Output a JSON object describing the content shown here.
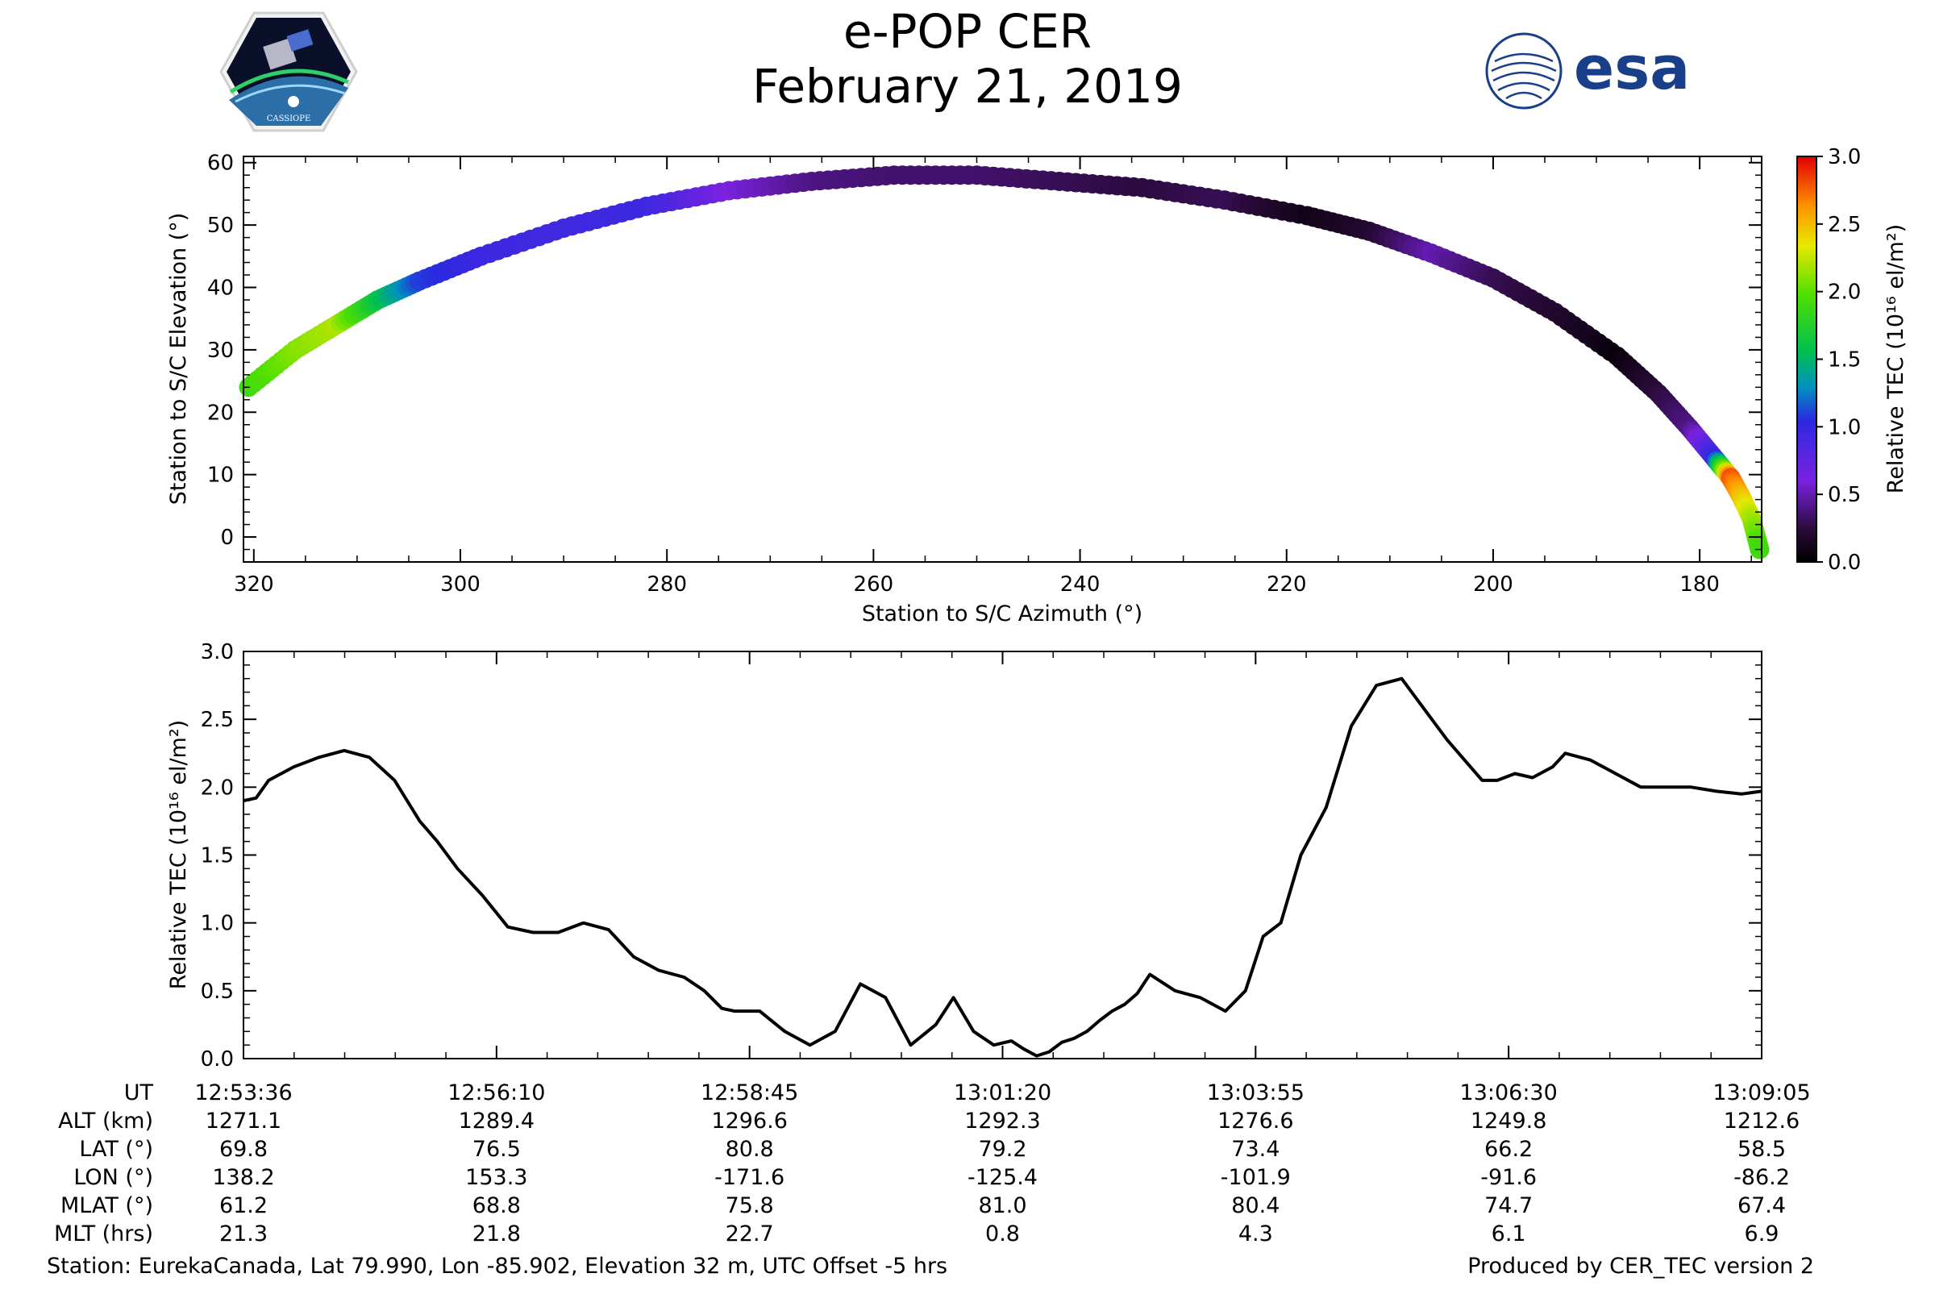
{
  "header": {
    "title": "e-POP CER",
    "date": "February 21, 2019",
    "logo_left": "CASSIOPE",
    "logo_right": "esa"
  },
  "chart_data": [
    {
      "type": "scatter",
      "name": "pass-geometry",
      "xlabel": "Station to S/C Azimuth (°)",
      "ylabel": "Station to S/C Elevation (°)",
      "xlim": [
        321,
        174
      ],
      "ylim": [
        -4,
        61
      ],
      "xticks": [
        320,
        300,
        280,
        260,
        240,
        220,
        200,
        180
      ],
      "yticks": [
        0,
        10,
        20,
        30,
        40,
        50,
        60
      ],
      "colorbar": {
        "label": "Relative TEC (10¹⁶ el/m²)",
        "range": [
          0.0,
          3.0
        ],
        "ticks": [
          "0.0",
          "0.5",
          "1.0",
          "1.5",
          "2.0",
          "2.5",
          "3.0"
        ]
      },
      "points": [
        {
          "az": 320.5,
          "el": 24,
          "tec": 1.9
        },
        {
          "az": 316,
          "el": 30,
          "tec": 2.1
        },
        {
          "az": 312,
          "el": 34,
          "tec": 2.2
        },
        {
          "az": 308,
          "el": 38,
          "tec": 1.6
        },
        {
          "az": 304,
          "el": 41,
          "tec": 1.1
        },
        {
          "az": 298,
          "el": 45,
          "tec": 0.95
        },
        {
          "az": 290,
          "el": 49.5,
          "tec": 0.93
        },
        {
          "az": 282,
          "el": 53,
          "tec": 0.95
        },
        {
          "az": 274,
          "el": 55.5,
          "tec": 0.6
        },
        {
          "az": 266,
          "el": 57,
          "tec": 0.4
        },
        {
          "az": 258,
          "el": 58,
          "tec": 0.35
        },
        {
          "az": 250,
          "el": 58,
          "tec": 0.35
        },
        {
          "az": 242,
          "el": 57,
          "tec": 0.3
        },
        {
          "az": 234,
          "el": 56,
          "tec": 0.25
        },
        {
          "az": 226,
          "el": 54,
          "tec": 0.3
        },
        {
          "az": 218,
          "el": 51.5,
          "tec": 0.1
        },
        {
          "az": 212,
          "el": 49,
          "tec": 0.2
        },
        {
          "az": 206,
          "el": 45.5,
          "tec": 0.5
        },
        {
          "az": 200,
          "el": 41.5,
          "tec": 0.3
        },
        {
          "az": 194,
          "el": 36,
          "tec": 0.2
        },
        {
          "az": 188,
          "el": 29,
          "tec": 0.05
        },
        {
          "az": 184,
          "el": 23,
          "tec": 0.25
        },
        {
          "az": 181,
          "el": 17.5,
          "tec": 0.4
        },
        {
          "az": 178.5,
          "el": 12.5,
          "tec": 1.0
        },
        {
          "az": 177,
          "el": 9.5,
          "tec": 2.8
        },
        {
          "az": 176,
          "el": 6.5,
          "tec": 2.5
        },
        {
          "az": 175,
          "el": 3,
          "tec": 2.2
        },
        {
          "az": 174.2,
          "el": -2,
          "tec": 1.9
        }
      ]
    },
    {
      "type": "line",
      "name": "relative-tec",
      "xlabel": "",
      "ylabel": "Relative TEC (10¹⁶ el/m²)",
      "xlim": [
        0,
        6.03
      ],
      "ylim": [
        0.0,
        3.0
      ],
      "yticks": [
        "0.0",
        "0.5",
        "1.0",
        "1.5",
        "2.0",
        "2.5",
        "3.0"
      ],
      "series": [
        {
          "name": "Relative TEC",
          "x": [
            0,
            0.05,
            0.1,
            0.2,
            0.3,
            0.4,
            0.5,
            0.6,
            0.7,
            0.77,
            0.85,
            0.95,
            1.05,
            1.15,
            1.25,
            1.35,
            1.45,
            1.55,
            1.65,
            1.75,
            1.83,
            1.9,
            1.95,
            2.05,
            2.15,
            2.25,
            2.35,
            2.45,
            2.55,
            2.65,
            2.75,
            2.82,
            2.9,
            2.98,
            3.05,
            3.1,
            3.15,
            3.2,
            3.25,
            3.3,
            3.35,
            3.4,
            3.45,
            3.5,
            3.55,
            3.6,
            3.7,
            3.8,
            3.9,
            3.98,
            4.05,
            4.12,
            4.2,
            4.3,
            4.4,
            4.5,
            4.6,
            4.7,
            4.78,
            4.85,
            4.92,
            4.98,
            5.05,
            5.12,
            5.2,
            5.25,
            5.35,
            5.45,
            5.55,
            5.65,
            5.75,
            5.85,
            5.95,
            6.03
          ],
          "y": [
            1.9,
            1.92,
            2.05,
            2.15,
            2.22,
            2.27,
            2.22,
            2.05,
            1.75,
            1.6,
            1.4,
            1.2,
            0.97,
            0.93,
            0.93,
            1.0,
            0.95,
            0.75,
            0.65,
            0.6,
            0.5,
            0.37,
            0.35,
            0.35,
            0.2,
            0.1,
            0.2,
            0.55,
            0.45,
            0.1,
            0.25,
            0.45,
            0.2,
            0.1,
            0.13,
            0.07,
            0.02,
            0.05,
            0.12,
            0.15,
            0.2,
            0.28,
            0.35,
            0.4,
            0.48,
            0.62,
            0.5,
            0.45,
            0.35,
            0.5,
            0.9,
            1.0,
            1.5,
            1.85,
            2.45,
            2.75,
            2.8,
            2.55,
            2.35,
            2.2,
            2.05,
            2.05,
            2.1,
            2.07,
            2.15,
            2.25,
            2.2,
            2.1,
            2.0,
            2.0,
            2.0,
            1.97,
            1.95,
            1.97
          ]
        }
      ]
    }
  ],
  "orbit_table": {
    "row_labels": [
      "UT",
      "ALT (km)",
      "LAT (°)",
      "LON (°)",
      "MLAT (°)",
      "MLT (hrs)"
    ],
    "columns": [
      {
        "UT": "12:53:36",
        "ALT": "1271.1",
        "LAT": "69.8",
        "LON": "138.2",
        "MLAT": "61.2",
        "MLT": "21.3"
      },
      {
        "UT": "12:56:10",
        "ALT": "1289.4",
        "LAT": "76.5",
        "LON": "153.3",
        "MLAT": "68.8",
        "MLT": "21.8"
      },
      {
        "UT": "12:58:45",
        "ALT": "1296.6",
        "LAT": "80.8",
        "LON": "-171.6",
        "MLAT": "75.8",
        "MLT": "22.7"
      },
      {
        "UT": "13:01:20",
        "ALT": "1292.3",
        "LAT": "79.2",
        "LON": "-125.4",
        "MLAT": "81.0",
        "MLT": "0.8"
      },
      {
        "UT": "13:03:55",
        "ALT": "1276.6",
        "LAT": "73.4",
        "LON": "-101.9",
        "MLAT": "80.4",
        "MLT": "4.3"
      },
      {
        "UT": "13:06:30",
        "ALT": "1249.8",
        "LAT": "66.2",
        "LON": "-91.6",
        "MLAT": "74.7",
        "MLT": "6.1"
      },
      {
        "UT": "13:09:05",
        "ALT": "1212.6",
        "LAT": "58.5",
        "LON": "-86.2",
        "MLAT": "67.4",
        "MLT": "6.9"
      }
    ]
  },
  "footer": {
    "station": "Station: EurekaCanada, Lat 79.990, Lon -85.902, Elevation 32 m, UTC Offset -5 hrs",
    "produced": "Produced by CER_TEC version 2"
  }
}
